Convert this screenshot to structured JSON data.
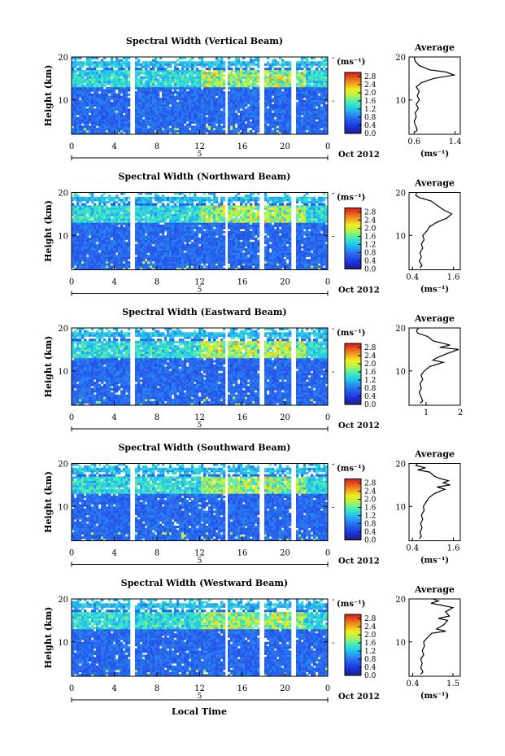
{
  "page": {
    "xlabel": "Local Time",
    "date_label": "Oct 2012",
    "day_label": "5"
  },
  "chart_data": [
    {
      "type": "heatmap",
      "title": "Spectral Width (Vertical Beam)",
      "ylabel": "Height (km)",
      "ylim": [
        2,
        20
      ],
      "yticks": [
        "20",
        "10"
      ],
      "xlim": [
        0,
        24
      ],
      "xticks": [
        "0",
        "4",
        "8",
        "12",
        "16",
        "20",
        "0"
      ],
      "gaps": [
        [
          5.4,
          5.9
        ],
        [
          14.3,
          14.7
        ],
        [
          17.7,
          18.1
        ],
        [
          20.6,
          21.0
        ]
      ],
      "colorbar": {
        "unit": "(ms⁻¹)",
        "ticks": [
          "2.8",
          "2.4",
          "2.0",
          "1.6",
          "1.2",
          "0.8",
          "0.4",
          "0.0"
        ],
        "range": [
          0,
          3.0
        ]
      },
      "average": {
        "title": "Average",
        "xlabel": "(ms⁻¹)",
        "xticks": [
          "0.6",
          "1.4"
        ],
        "xlim": [
          0.5,
          1.5
        ],
        "yticks": [
          "20",
          "10"
        ],
        "profile": [
          [
            2.5,
            0.62
          ],
          [
            3,
            0.66
          ],
          [
            4,
            0.63
          ],
          [
            5,
            0.6
          ],
          [
            6,
            0.64
          ],
          [
            7,
            0.62
          ],
          [
            8,
            0.68
          ],
          [
            9,
            0.64
          ],
          [
            10,
            0.7
          ],
          [
            11,
            0.66
          ],
          [
            12,
            0.7
          ],
          [
            13,
            0.64
          ],
          [
            14,
            0.74
          ],
          [
            15,
            0.98
          ],
          [
            15.8,
            1.38
          ],
          [
            16.5,
            1.22
          ],
          [
            17,
            0.9
          ],
          [
            18,
            0.7
          ],
          [
            19,
            0.62
          ],
          [
            20,
            0.6
          ]
        ]
      }
    },
    {
      "type": "heatmap",
      "title": "Spectral Width (Northward Beam)",
      "ylabel": "Height (km)",
      "ylim": [
        2,
        20
      ],
      "yticks": [
        "20",
        "10"
      ],
      "xlim": [
        0,
        24
      ],
      "xticks": [
        "0",
        "4",
        "8",
        "12",
        "16",
        "20",
        "0"
      ],
      "gaps": [
        [
          5.4,
          5.9
        ],
        [
          14.3,
          14.7
        ],
        [
          17.7,
          18.1
        ],
        [
          20.6,
          21.0
        ]
      ],
      "colorbar": {
        "unit": "(ms⁻¹)",
        "ticks": [
          "2.8",
          "2.4",
          "2.0",
          "1.6",
          "1.2",
          "0.8",
          "0.4",
          "0.0"
        ],
        "range": [
          0,
          3.0
        ]
      },
      "average": {
        "title": "Average",
        "xlabel": "(ms⁻¹)",
        "xticks": [
          "0.4",
          "1.6"
        ],
        "xlim": [
          0.3,
          1.8
        ],
        "yticks": [
          "20",
          "10"
        ],
        "profile": [
          [
            2.5,
            0.62
          ],
          [
            3,
            0.68
          ],
          [
            4,
            0.6
          ],
          [
            5,
            0.66
          ],
          [
            6,
            0.62
          ],
          [
            7,
            0.7
          ],
          [
            8,
            0.66
          ],
          [
            9,
            0.74
          ],
          [
            10,
            0.7
          ],
          [
            11,
            0.82
          ],
          [
            12,
            0.9
          ],
          [
            13,
            1.1
          ],
          [
            14,
            1.4
          ],
          [
            15,
            1.55
          ],
          [
            16,
            1.3
          ],
          [
            17,
            1.12
          ],
          [
            18,
            0.95
          ],
          [
            18.8,
            0.6
          ],
          [
            19.3,
            0.5
          ],
          [
            20,
            0.52
          ]
        ]
      }
    },
    {
      "type": "heatmap",
      "title": "Spectral Width (Eastward Beam)",
      "ylabel": "Height (km)",
      "ylim": [
        2,
        20
      ],
      "yticks": [
        "20",
        "10"
      ],
      "xlim": [
        0,
        24
      ],
      "xticks": [
        "0",
        "4",
        "8",
        "12",
        "16",
        "20",
        "0"
      ],
      "gaps": [
        [
          5.4,
          5.9
        ],
        [
          14.3,
          14.7
        ],
        [
          17.7,
          18.1
        ],
        [
          20.6,
          21.0
        ]
      ],
      "colorbar": {
        "unit": "(ms⁻¹)",
        "ticks": [
          "2.8",
          "2.4",
          "2.0",
          "1.6",
          "1.2",
          "0.8",
          "0.4",
          "0.0"
        ],
        "range": [
          0,
          3.0
        ]
      },
      "average": {
        "title": "Average",
        "xlabel": "",
        "xticks": [
          "1",
          "2"
        ],
        "xlim": [
          0.5,
          2.0
        ],
        "yticks": [
          "20",
          "10"
        ],
        "profile": [
          [
            2.5,
            0.82
          ],
          [
            3,
            0.9
          ],
          [
            4,
            0.85
          ],
          [
            5,
            0.8
          ],
          [
            6,
            0.86
          ],
          [
            7,
            0.82
          ],
          [
            8,
            0.9
          ],
          [
            9,
            0.85
          ],
          [
            10,
            0.95
          ],
          [
            11,
            1.1
          ],
          [
            12,
            1.5
          ],
          [
            12.5,
            1.2
          ],
          [
            13,
            1.3
          ],
          [
            14,
            1.6
          ],
          [
            15,
            1.95
          ],
          [
            15.5,
            1.4
          ],
          [
            16,
            1.7
          ],
          [
            17,
            1.2
          ],
          [
            18,
            1.05
          ],
          [
            18.8,
            0.75
          ],
          [
            19.4,
            0.72
          ],
          [
            20,
            0.78
          ]
        ]
      }
    },
    {
      "type": "heatmap",
      "title": "Spectral Width (Southward Beam)",
      "ylabel": "Height (km)",
      "ylim": [
        2,
        20
      ],
      "yticks": [
        "20",
        "10"
      ],
      "xlim": [
        0,
        24
      ],
      "xticks": [
        "0",
        "4",
        "8",
        "12",
        "16",
        "20",
        "0"
      ],
      "gaps": [
        [
          5.4,
          5.9
        ],
        [
          14.3,
          14.7
        ],
        [
          17.7,
          18.1
        ],
        [
          20.6,
          21.0
        ]
      ],
      "colorbar": {
        "unit": "(ms⁻¹)",
        "ticks": [
          "2.8",
          "2.4",
          "2.0",
          "1.6",
          "1.2",
          "0.8",
          "0.4",
          "0.0"
        ],
        "range": [
          0,
          3.0
        ]
      },
      "average": {
        "title": "Average",
        "xlabel": "(ms⁻¹)",
        "xticks": [
          "0.4",
          "1.6"
        ],
        "xlim": [
          0.3,
          1.8
        ],
        "yticks": [
          "20",
          "10"
        ],
        "profile": [
          [
            2.5,
            0.6
          ],
          [
            3,
            0.66
          ],
          [
            4,
            0.62
          ],
          [
            5,
            0.68
          ],
          [
            6,
            0.64
          ],
          [
            7,
            0.7
          ],
          [
            8,
            0.66
          ],
          [
            9,
            0.74
          ],
          [
            10,
            0.72
          ],
          [
            11,
            0.8
          ],
          [
            12,
            0.88
          ],
          [
            13,
            1.05
          ],
          [
            14,
            1.35
          ],
          [
            14.5,
            1.12
          ],
          [
            15,
            1.5
          ],
          [
            15.5,
            1.3
          ],
          [
            16,
            1.45
          ],
          [
            16.5,
            1.2
          ],
          [
            17,
            1.05
          ],
          [
            18,
            0.9
          ],
          [
            18.5,
            0.55
          ],
          [
            19,
            0.78
          ],
          [
            19.5,
            0.5
          ],
          [
            20,
            0.55
          ]
        ]
      }
    },
    {
      "type": "heatmap",
      "title": "Spectral Width (Westward Beam)",
      "ylabel": "Height (km)",
      "ylim": [
        2,
        20
      ],
      "yticks": [
        "20",
        "10"
      ],
      "xlim": [
        0,
        24
      ],
      "xticks": [
        "0",
        "4",
        "8",
        "12",
        "16",
        "20",
        "0"
      ],
      "gaps": [
        [
          5.4,
          5.9
        ],
        [
          14.3,
          14.7
        ],
        [
          17.7,
          18.1
        ],
        [
          20.6,
          21.0
        ]
      ],
      "colorbar": {
        "unit": "(ms⁻¹)",
        "ticks": [
          "2.8",
          "2.4",
          "2.0",
          "1.6",
          "1.2",
          "0.8",
          "0.4",
          "0.0"
        ],
        "range": [
          0,
          3.0
        ]
      },
      "average": {
        "title": "Average",
        "xlabel": "(ms⁻¹)",
        "xticks": [
          "0.4",
          "1.5"
        ],
        "xlim": [
          0.3,
          1.7
        ],
        "yticks": [
          "20",
          "10"
        ],
        "profile": [
          [
            2.5,
            0.62
          ],
          [
            3,
            0.68
          ],
          [
            4,
            0.62
          ],
          [
            5,
            0.66
          ],
          [
            6,
            0.62
          ],
          [
            7,
            0.7
          ],
          [
            8,
            0.66
          ],
          [
            9,
            0.72
          ],
          [
            10,
            0.7
          ],
          [
            11,
            0.8
          ],
          [
            12,
            0.92
          ],
          [
            12.5,
            1.3
          ],
          [
            13,
            1.05
          ],
          [
            14,
            1.25
          ],
          [
            15,
            1.35
          ],
          [
            15.5,
            1.1
          ],
          [
            16,
            1.4
          ],
          [
            17,
            1.3
          ],
          [
            18,
            1.5
          ],
          [
            18.5,
            1.2
          ],
          [
            19,
            0.9
          ],
          [
            19.5,
            1.1
          ],
          [
            20,
            0.95
          ]
        ]
      }
    }
  ]
}
